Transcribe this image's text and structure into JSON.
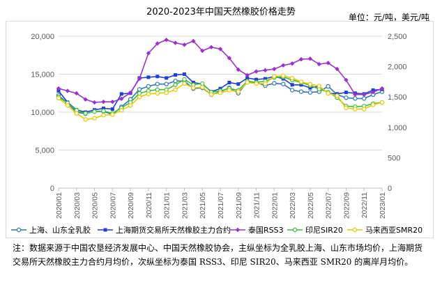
{
  "header": {
    "title": "2020-2023年中国天然橡胶价格走势",
    "unit": "单位：元/吨，美元/吨"
  },
  "note": "注：数据来源于中国农垦经济发展中心、中国天然橡胶协会，主纵坐标为全乳胶上海、山东市场均价，上海期货交易所天然橡胶主力合约月均价，次纵坐标为泰国 RSS3、印尼 SIR20、马来西亚 SMR20 的离岸月均价。",
  "chart_data": {
    "type": "line",
    "x": [
      "2020/01",
      "2020/02",
      "2020/03",
      "2020/04",
      "2020/05",
      "2020/06",
      "2020/07",
      "2020/08",
      "2020/09",
      "2020/10",
      "2020/11",
      "2020/12",
      "2021/01",
      "2021/02",
      "2021/03",
      "2021/04",
      "2021/05",
      "2021/06",
      "2021/07",
      "2021/08",
      "2021/09",
      "2021/10",
      "2021/11",
      "2021/12",
      "2022/01",
      "2022/02",
      "2022/03",
      "2022/04",
      "2022/05",
      "2022/06",
      "2022/07",
      "2022/08",
      "2022/09",
      "2022/10",
      "2022/11",
      "2022/12",
      "2023/01"
    ],
    "x_tick_labels": [
      "2020/01",
      "2020/03",
      "2020/05",
      "2020/07",
      "2020/09",
      "2020/11",
      "2021/01",
      "2021/03",
      "2021/05",
      "2021/07",
      "2021/09",
      "2021/11",
      "2022/01",
      "2022/03",
      "2022/05",
      "2022/07",
      "2022/09",
      "2022/11",
      "2023/01"
    ],
    "y_left": {
      "lim": [
        0,
        20000
      ],
      "ticks": [
        "0",
        "5,000",
        "10,000",
        "15,000",
        "20,000"
      ]
    },
    "y_right": {
      "lim": [
        0,
        2500
      ],
      "ticks": [
        "0",
        "500",
        "1,000",
        "1,500",
        "2,000",
        "2,500"
      ]
    },
    "grid": true,
    "legend_position": "bottom",
    "series": [
      {
        "name": "上海、山东全乳胶",
        "axis": "left",
        "color": "#2e75b6",
        "marker": "circle",
        "values": [
          12200,
          11200,
          10000,
          9800,
          10100,
          10100,
          9700,
          10700,
          11700,
          13000,
          13400,
          13700,
          13700,
          14100,
          14100,
          13100,
          13200,
          12300,
          12700,
          13200,
          12500,
          14000,
          13900,
          13500,
          13800,
          13700,
          12900,
          12700,
          12600,
          12700,
          13400,
          12300,
          11900,
          11800,
          11800,
          12300,
          12700
        ]
      },
      {
        "name": "上海期货交易所天然橡胶主力合约",
        "axis": "left",
        "color": "#1f3fd9",
        "marker": "square",
        "values": [
          12800,
          11300,
          10300,
          10000,
          10300,
          10500,
          10400,
          12400,
          12500,
          14500,
          14600,
          14700,
          14500,
          14900,
          15000,
          13900,
          13700,
          12700,
          13100,
          13900,
          13700,
          14500,
          14300,
          14400,
          14700,
          14400,
          13600,
          13600,
          13200,
          13400,
          12500,
          12400,
          12600,
          12500,
          12400,
          12900,
          13000
        ]
      },
      {
        "name": "泰国RSS3",
        "axis": "right",
        "color": "#9b30d0",
        "marker": "diamond",
        "values": [
          1640,
          1600,
          1560,
          1460,
          1410,
          1420,
          1420,
          1470,
          1570,
          1800,
          2220,
          2380,
          2440,
          2390,
          2360,
          2420,
          2260,
          2320,
          2290,
          2140,
          1950,
          1860,
          1920,
          1940,
          1960,
          2020,
          2050,
          2120,
          2130,
          2040,
          2060,
          1960,
          1780,
          1540,
          1540,
          1580,
          1640
        ]
      },
      {
        "name": "印尼SIR20",
        "axis": "right",
        "color": "#3bbf3b",
        "marker": "circle",
        "values": [
          1500,
          1400,
          1280,
          1230,
          1260,
          1270,
          1230,
          1320,
          1410,
          1560,
          1600,
          1620,
          1620,
          1700,
          1790,
          1700,
          1720,
          1580,
          1600,
          1640,
          1610,
          1760,
          1740,
          1760,
          1820,
          1830,
          1780,
          1740,
          1690,
          1630,
          1580,
          1490,
          1350,
          1340,
          1350,
          1390,
          1410
        ]
      },
      {
        "name": "马来西亚SMR20",
        "axis": "right",
        "color": "#e6c700",
        "marker": "circle",
        "values": [
          1480,
          1360,
          1230,
          1130,
          1150,
          1200,
          1210,
          1280,
          1360,
          1500,
          1550,
          1560,
          1570,
          1620,
          1720,
          1650,
          1660,
          1540,
          1570,
          1610,
          1590,
          1740,
          1720,
          1720,
          1840,
          1850,
          1810,
          1750,
          1710,
          1680,
          1560,
          1520,
          1320,
          1300,
          1300,
          1370,
          1410
        ]
      }
    ]
  }
}
